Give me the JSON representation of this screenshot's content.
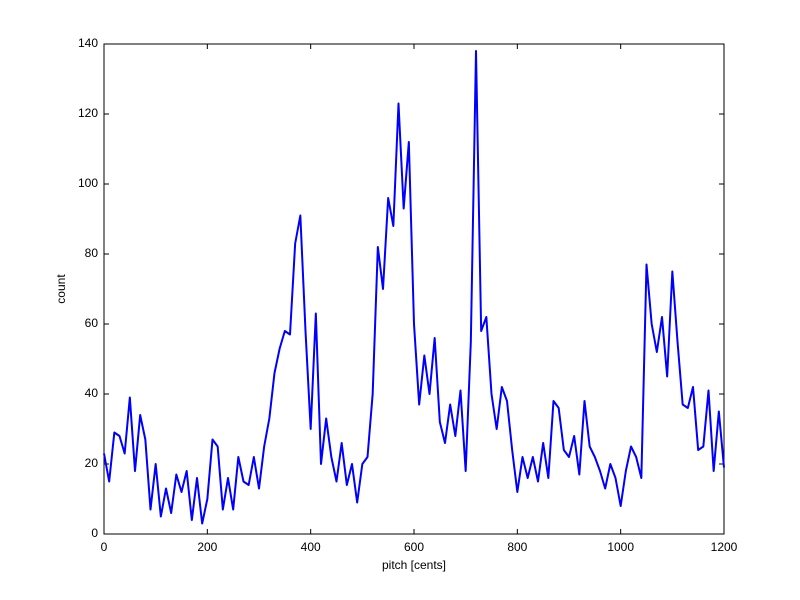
{
  "chart_data": {
    "type": "line",
    "xlabel": "pitch [cents]",
    "ylabel": "count",
    "x": [
      0,
      10,
      20,
      30,
      40,
      50,
      60,
      70,
      80,
      90,
      100,
      110,
      120,
      130,
      140,
      150,
      160,
      170,
      180,
      190,
      200,
      210,
      220,
      230,
      240,
      250,
      260,
      270,
      280,
      290,
      300,
      310,
      320,
      330,
      340,
      350,
      360,
      370,
      380,
      390,
      400,
      410,
      420,
      430,
      440,
      450,
      460,
      470,
      480,
      490,
      500,
      510,
      520,
      530,
      540,
      550,
      560,
      570,
      580,
      590,
      600,
      610,
      620,
      630,
      640,
      650,
      660,
      670,
      680,
      690,
      700,
      710,
      720,
      730,
      740,
      750,
      760,
      770,
      780,
      790,
      800,
      810,
      820,
      830,
      840,
      850,
      860,
      870,
      880,
      890,
      900,
      910,
      920,
      930,
      940,
      950,
      960,
      970,
      980,
      990,
      1000,
      1010,
      1020,
      1030,
      1040,
      1050,
      1060,
      1070,
      1080,
      1090,
      1100,
      1110,
      1120,
      1130,
      1140,
      1150,
      1160,
      1170,
      1180,
      1190,
      1200
    ],
    "values": [
      23,
      15,
      29,
      28,
      23,
      39,
      18,
      34,
      27,
      7,
      20,
      5,
      13,
      6,
      17,
      12,
      18,
      4,
      16,
      3,
      10,
      27,
      25,
      7,
      16,
      7,
      22,
      15,
      14,
      22,
      13,
      25,
      33,
      46,
      53,
      58,
      57,
      83,
      91,
      58,
      30,
      63,
      20,
      33,
      22,
      15,
      26,
      14,
      20,
      9,
      20,
      22,
      40,
      82,
      70,
      96,
      88,
      123,
      93,
      112,
      60,
      37,
      51,
      40,
      56,
      32,
      26,
      37,
      28,
      41,
      18,
      55,
      138,
      58,
      62,
      40,
      30,
      42,
      38,
      24,
      12,
      22,
      16,
      22,
      15,
      26,
      16,
      38,
      36,
      24,
      22,
      28,
      17,
      38,
      25,
      22,
      18,
      13,
      20,
      16,
      8,
      18,
      25,
      22,
      16,
      77,
      60,
      52,
      62,
      45,
      75,
      55,
      37,
      36,
      42,
      24,
      25,
      41,
      18,
      35,
      19
    ],
    "color": "#0000ff",
    "xlim": [
      0,
      1200
    ],
    "xticks": [
      0,
      200,
      400,
      600,
      800,
      1000,
      1200
    ],
    "ylim": [
      0,
      140
    ],
    "yticks": [
      0,
      20,
      40,
      60,
      80,
      100,
      120,
      140
    ]
  }
}
